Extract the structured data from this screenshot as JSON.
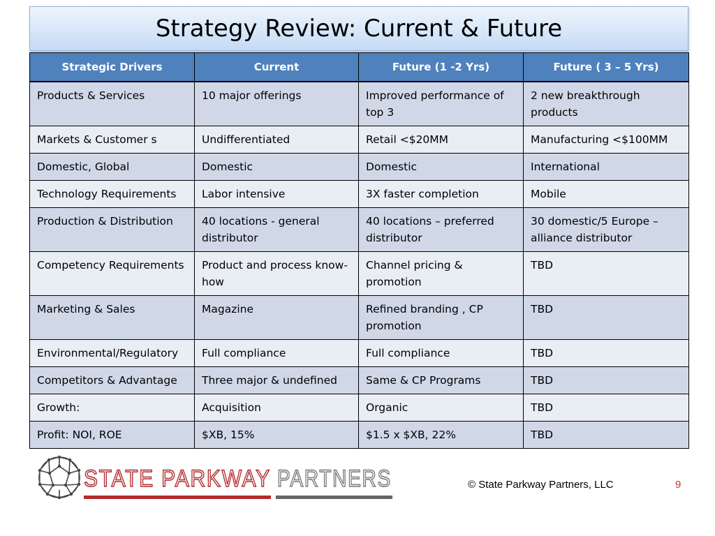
{
  "slide": {
    "title": "Strategy Review: Current & Future",
    "footer": "© State Parkway Partners, LLC",
    "page_number": "9"
  },
  "logo": {
    "text_red": "STATE PARKWAY",
    "text_gray": "PARTNERS",
    "red_color": "#b22a2e",
    "gray_color": "#777777"
  },
  "table": {
    "headers": [
      "Strategic Drivers",
      "Current",
      "Future (1 -2 Yrs)",
      "Future ( 3 – 5 Yrs)"
    ],
    "rows": [
      [
        "Products & Services",
        "10 major offerings",
        "Improved performance of top 3",
        "2 new breakthrough products"
      ],
      [
        "Markets & Customer s",
        "Undifferentiated",
        "Retail  <$20MM",
        "Manufacturing <$100MM"
      ],
      [
        "Domestic, Global",
        "Domestic",
        "Domestic",
        "International"
      ],
      [
        "Technology Requirements",
        "Labor intensive",
        "3X faster completion",
        "Mobile"
      ],
      [
        "Production & Distribution",
        "40 locations - general distributor",
        "40 locations – preferred distributor",
        "30 domestic/5 Europe – alliance distributor"
      ],
      [
        "Competency Requirements",
        "Product and process know-how",
        "Channel pricing & promotion",
        "TBD"
      ],
      [
        "Marketing & Sales",
        "Magazine",
        "Refined branding , CP promotion",
        "TBD"
      ],
      [
        "Environmental/Regulatory",
        "Full compliance",
        "Full compliance",
        "TBD"
      ],
      [
        "Competitors & Advantage",
        "Three major & undefined",
        "Same & CP Programs",
        "TBD"
      ],
      [
        "Growth:",
        "Acquisition",
        "Organic",
        "TBD"
      ],
      [
        "Profit: NOI, ROE",
        "$XB, 15%",
        "$1.5 x $XB, 22%",
        "TBD"
      ]
    ]
  }
}
